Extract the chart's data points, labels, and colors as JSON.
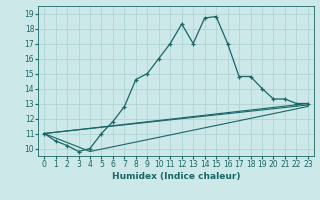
{
  "xlabel": "Humidex (Indice chaleur)",
  "background_color": "#cce8e8",
  "grid_color": "#b0d4d4",
  "line_color": "#1a6666",
  "xlim": [
    -0.5,
    23.5
  ],
  "ylim": [
    9.5,
    19.5
  ],
  "yticks": [
    10,
    11,
    12,
    13,
    14,
    15,
    16,
    17,
    18,
    19
  ],
  "xticks": [
    0,
    1,
    2,
    3,
    4,
    5,
    6,
    7,
    8,
    9,
    10,
    11,
    12,
    13,
    14,
    15,
    16,
    17,
    18,
    19,
    20,
    21,
    22,
    23
  ],
  "line1_x": [
    0,
    1,
    2,
    3,
    4,
    5,
    6,
    7,
    8,
    9,
    10,
    11,
    12,
    13,
    14,
    15,
    16,
    17,
    18,
    19,
    20,
    21,
    22,
    23
  ],
  "line1_y": [
    11.0,
    10.5,
    10.2,
    9.8,
    10.0,
    11.0,
    11.8,
    12.8,
    14.6,
    15.0,
    16.0,
    17.0,
    18.3,
    17.0,
    18.7,
    18.8,
    17.0,
    14.8,
    14.8,
    14.0,
    13.3,
    13.3,
    13.0,
    13.0
  ],
  "line2_x": [
    0,
    23
  ],
  "line2_y": [
    11.0,
    13.0
  ],
  "line3_x": [
    0,
    23
  ],
  "line3_y": [
    11.0,
    12.9
  ],
  "line4_x": [
    0,
    4,
    23
  ],
  "line4_y": [
    11.0,
    9.8,
    12.8
  ]
}
